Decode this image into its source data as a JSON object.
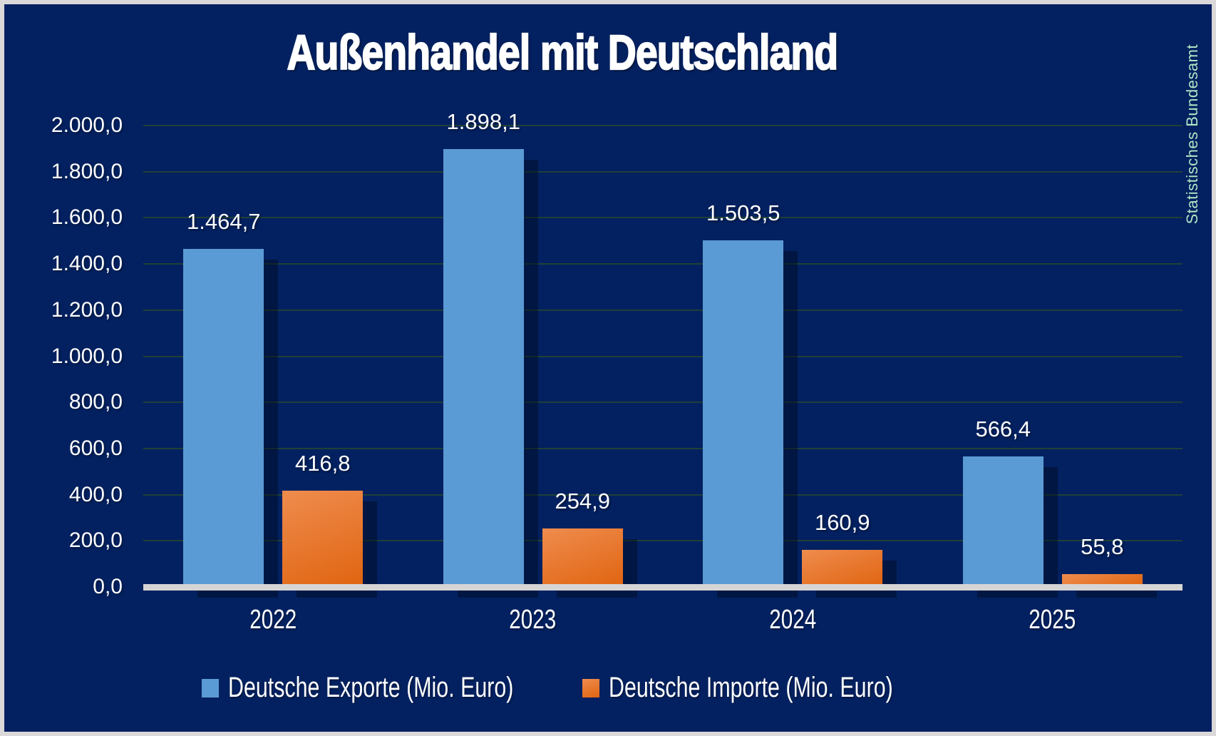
{
  "frame": {
    "background": "#032160",
    "border_color": "#DAD8D9",
    "grid_color": "#1F4038",
    "baseline_color": "#D6D5D5",
    "text_color": "#FFFFFF",
    "source_color": "#AEE5C5"
  },
  "title": "Außenhandel mit Deutschland",
  "source_note": "Statistisches Bundesamt",
  "chart_data": {
    "type": "bar",
    "title": "Außenhandel mit Deutschland",
    "categories": [
      "2022",
      "2023",
      "2024",
      "2025"
    ],
    "series": [
      {
        "name": "Deutsche Exporte (Mio. Euro)",
        "color": "#5B9BD5",
        "values": [
          1464.7,
          1898.1,
          1503.5,
          566.4
        ],
        "value_labels": [
          "1.464,7",
          "1.898,1",
          "1.503,5",
          "566,4"
        ]
      },
      {
        "name": "Deutsche Importe (Mio. Euro)",
        "color": "#E8762B",
        "gradient": [
          "#EF8C4E",
          "#E06410"
        ],
        "values": [
          416.8,
          254.9,
          160.9,
          55.8
        ],
        "value_labels": [
          "416,8",
          "254,9",
          "160,9",
          "55,8"
        ]
      }
    ],
    "ylim": [
      0,
      2000
    ],
    "y_tick_step": 200,
    "y_tick_labels": [
      "2.000,0",
      "1.800,0",
      "1.600,0",
      "1.400,0",
      "1.200,0",
      "1.000,0",
      "800,0",
      "600,0",
      "400,0",
      "200,0",
      "0,0"
    ],
    "grid": true,
    "legend_position": "bottom"
  }
}
